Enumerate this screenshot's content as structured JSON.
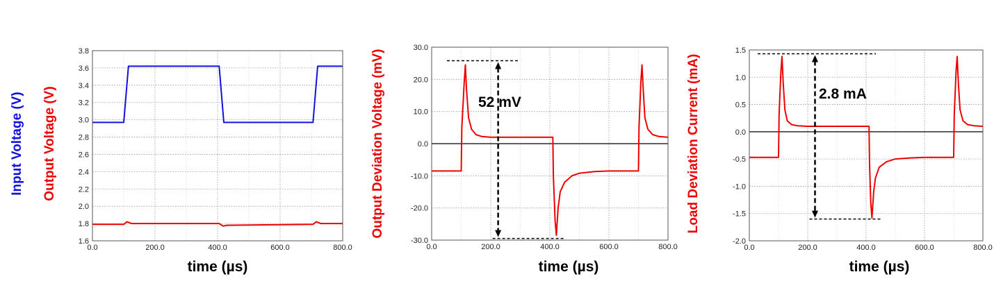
{
  "chart_data": [
    {
      "type": "line",
      "xlabel": "time (µs)",
      "ylabels": [
        {
          "text": "Input Voltage  (V)",
          "color": "#1010e0"
        },
        {
          "text": "Output Voltage  (V)",
          "color": "#ee0000"
        }
      ],
      "xlim": [
        0,
        800
      ],
      "ylim": [
        1.6,
        3.8
      ],
      "xticks": [
        "0.0",
        "200.0",
        "400.0",
        "600.0",
        "800.0"
      ],
      "yticks": [
        "1.6",
        "1.8",
        "2.0",
        "2.2",
        "2.4",
        "2.6",
        "2.8",
        "3.0",
        "3.2",
        "3.4",
        "3.6",
        "3.8"
      ],
      "grid": true,
      "series": [
        {
          "color": "#1010e0",
          "x": [
            0,
            100,
            115,
            405,
            420,
            705,
            720,
            800
          ],
          "y": [
            2.97,
            2.97,
            3.62,
            3.62,
            2.97,
            2.97,
            3.62,
            3.62
          ]
        },
        {
          "color": "#ee0000",
          "x": [
            0,
            100,
            110,
            125,
            405,
            418,
            430,
            705,
            715,
            730,
            800
          ],
          "y": [
            1.79,
            1.79,
            1.82,
            1.8,
            1.8,
            1.77,
            1.78,
            1.79,
            1.82,
            1.8,
            1.8
          ]
        }
      ]
    },
    {
      "type": "line",
      "xlabel": "time (µs)",
      "ylabels": [
        {
          "text": "Output Deviation Voltage  (mV)",
          "color": "#ee0000"
        }
      ],
      "xlim": [
        0,
        800
      ],
      "ylim": [
        -30,
        30
      ],
      "xticks": [
        "0.0",
        "200.0",
        "400.0",
        "600.0",
        "800.0"
      ],
      "yticks": [
        "-30.0",
        "-20.0",
        "-10.0",
        "0.0",
        "10.0",
        "20.0",
        "30.0"
      ],
      "grid": true,
      "zero_line": true,
      "series": [
        {
          "color": "#ee0000",
          "x": [
            0,
            100,
            102,
            110,
            114,
            118,
            125,
            135,
            150,
            170,
            200,
            250,
            300,
            350,
            400,
            410,
            412,
            418,
            422,
            428,
            435,
            450,
            475,
            500,
            550,
            600,
            650,
            700,
            702,
            708,
            712,
            716,
            722,
            732,
            748,
            770,
            800
          ],
          "y": [
            -8.5,
            -8.5,
            5,
            19,
            24.5,
            17,
            8,
            4.5,
            2.8,
            2.2,
            2.0,
            2.0,
            2.0,
            2.0,
            2.0,
            2.0,
            -10,
            -24,
            -28.5,
            -20,
            -15,
            -12,
            -10,
            -9.2,
            -8.7,
            -8.5,
            -8.5,
            -8.5,
            5,
            19,
            24.5,
            17,
            8,
            4.5,
            2.8,
            2.2,
            2.0
          ]
        }
      ],
      "annotation": {
        "text": "52 mV",
        "top_value": 25.8,
        "bottom_value": -29.5,
        "arrow_x": 225
      }
    },
    {
      "type": "line",
      "xlabel": "time (µs)",
      "ylabels": [
        {
          "text": "Load  Deviation Current  (mA)",
          "color": "#ee0000"
        }
      ],
      "xlim": [
        0,
        800
      ],
      "ylim": [
        -2.0,
        1.5
      ],
      "xticks": [
        "0.0",
        "200.0",
        "400.0",
        "600.0",
        "800.0"
      ],
      "yticks": [
        "-2.0",
        "-1.5",
        "-1.0",
        "-0.5",
        "0.0",
        "0.5",
        "1.0",
        "1.5"
      ],
      "grid": true,
      "zero_line": true,
      "series": [
        {
          "color": "#ee0000",
          "x": [
            0,
            100,
            102,
            108,
            112,
            116,
            122,
            130,
            145,
            165,
            200,
            250,
            300,
            350,
            400,
            410,
            412,
            416,
            420,
            426,
            432,
            445,
            470,
            500,
            550,
            600,
            650,
            700,
            702,
            708,
            712,
            716,
            722,
            732,
            748,
            770,
            800
          ],
          "y": [
            -0.47,
            -0.47,
            0.3,
            1.1,
            1.38,
            0.9,
            0.4,
            0.2,
            0.13,
            0.11,
            0.1,
            0.1,
            0.1,
            0.1,
            0.1,
            0.1,
            -0.6,
            -1.3,
            -1.58,
            -1.1,
            -0.85,
            -0.65,
            -0.55,
            -0.5,
            -0.48,
            -0.47,
            -0.47,
            -0.47,
            0.3,
            1.1,
            1.38,
            0.9,
            0.4,
            0.2,
            0.13,
            0.11,
            0.1
          ]
        }
      ],
      "annotation": {
        "text": "2.8 mA",
        "top_value": 1.43,
        "bottom_value": -1.6,
        "arrow_x": 225
      }
    }
  ]
}
